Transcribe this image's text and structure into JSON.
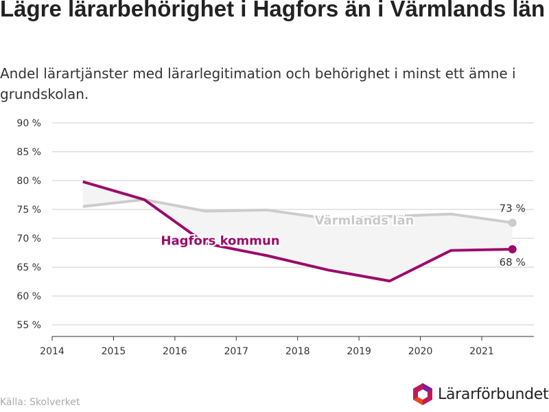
{
  "title": "Lägre lärarbehörighet i Hagfors än i Värmlands län",
  "subtitle": "Andel lärartjänster med lärarlegitimation och behörighet i minst ett ämne i grundskolan.",
  "source": "Källa: Skolverket",
  "logo_text": "Lärarförbundet",
  "colors": {
    "hagfors": "#9b0a6b",
    "varmland": "#cccccc",
    "grid": "#dddddd",
    "band": "#f4f4f4"
  },
  "chart_data": {
    "type": "line",
    "x": [
      2014.5,
      2015.5,
      2016.5,
      2017.5,
      2018.5,
      2019.5,
      2020.5,
      2021.5
    ],
    "xticks": [
      2014,
      2015,
      2016,
      2017,
      2018,
      2019,
      2020,
      2021
    ],
    "xlim": [
      2014,
      2021.85
    ],
    "ylim": [
      53,
      92
    ],
    "yticks": [
      55,
      60,
      65,
      70,
      75,
      80,
      85,
      90
    ],
    "ytick_labels": [
      "55 %",
      "60 %",
      "65 %",
      "70 %",
      "75 %",
      "80 %",
      "85 %",
      "90 %"
    ],
    "grid": true,
    "series": [
      {
        "name": "Värmlands län",
        "values": [
          75.5,
          76.7,
          74.7,
          74.9,
          73.4,
          73.8,
          74.2,
          72.7
        ],
        "end_label": "73 %"
      },
      {
        "name": "Hagfors kommun",
        "values": [
          79.8,
          76.7,
          69.1,
          67.0,
          64.5,
          62.6,
          67.9,
          68.1
        ],
        "end_label": "68 %"
      }
    ]
  }
}
